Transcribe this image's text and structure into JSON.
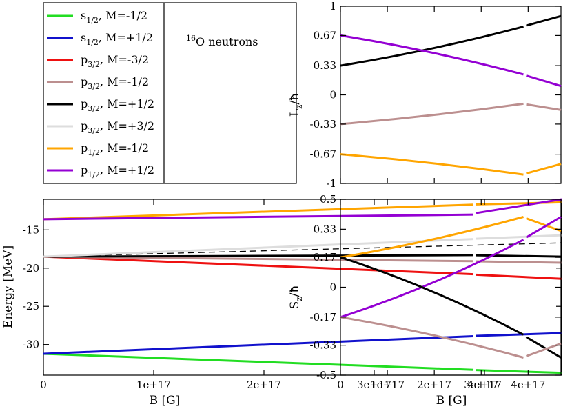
{
  "legend": {
    "title_sup": "16",
    "title_text": "O neutrons",
    "entries": [
      {
        "sym": "s",
        "sub": "1/2",
        "m": ", M=-1/2",
        "color": "#22dd22"
      },
      {
        "sym": "s",
        "sub": "1/2",
        "m": ", M=+1/2",
        "color": "#1111cc"
      },
      {
        "sym": "p",
        "sub": "3/2",
        "m": ", M=-3/2",
        "color": "#ee1111"
      },
      {
        "sym": "p",
        "sub": "3/2",
        "m": ", M=-1/2",
        "color": "#bc8f8f"
      },
      {
        "sym": "p",
        "sub": "3/2",
        "m": ", M=+1/2",
        "color": "#000000"
      },
      {
        "sym": "p",
        "sub": "3/2",
        "m": ", M=+3/2",
        "color": "#dddddd"
      },
      {
        "sym": "p",
        "sub": "1/2",
        "m": ", M=-1/2",
        "color": "#ffa500"
      },
      {
        "sym": "p",
        "sub": "1/2",
        "m": ", M=+1/2",
        "color": "#9400d3"
      }
    ]
  },
  "chart_data": [
    {
      "id": "energy",
      "type": "line",
      "xlabel": "B [G]",
      "ylabel": "Energy [MeV]",
      "xlim": [
        0,
        4.7e+17
      ],
      "ylim": [
        -34,
        -11
      ],
      "xticks": [
        "0",
        "1e+17",
        "2e+17",
        "3e+17",
        "4e+17"
      ],
      "yticks": [
        "-15",
        "-20",
        "-25",
        "-30"
      ],
      "series": [
        {
          "name": "s1/2 M=-1/2",
          "color": "#22dd22",
          "x": [
            0,
            3.9e+17,
            4.7e+17
          ],
          "y": [
            -31.2,
            -33.3,
            -33.7
          ]
        },
        {
          "name": "s1/2 M=+1/2",
          "color": "#1111cc",
          "x": [
            0,
            3.9e+17,
            4.7e+17
          ],
          "y": [
            -31.2,
            -28.9,
            -28.5
          ]
        },
        {
          "name": "p3/2 M=-3/2",
          "color": "#ee1111",
          "x": [
            0,
            3.9e+17,
            4.7e+17
          ],
          "y": [
            -18.5,
            -20.8,
            -21.4
          ]
        },
        {
          "name": "p3/2 M=-1/2",
          "color": "#bc8f8f",
          "x": [
            0,
            3.9e+17,
            4.7e+17
          ],
          "y": [
            -18.5,
            -19.1,
            -19.3
          ]
        },
        {
          "name": "p3/2 M=+1/2",
          "color": "#000000",
          "x": [
            0,
            3.9e+17,
            4.7e+17
          ],
          "y": [
            -18.5,
            -18.3,
            -18.5
          ]
        },
        {
          "name": "p3/2 M=+3/2",
          "color": "#dddddd",
          "x": [
            0,
            3.9e+17,
            4.7e+17
          ],
          "y": [
            -18.5,
            -16.2,
            -15.7
          ]
        },
        {
          "name": "p1/2 M=-1/2",
          "color": "#ffa500",
          "x": [
            0,
            3.9e+17,
            4.7e+17
          ],
          "y": [
            -13.6,
            -11.7,
            -11.4
          ]
        },
        {
          "name": "p1/2 M=+1/2",
          "color": "#9400d3",
          "x": [
            0,
            3.9e+17,
            4.7e+17
          ],
          "y": [
            -13.6,
            -13.0,
            -11.0
          ]
        }
      ]
    },
    {
      "id": "lz",
      "type": "line",
      "xlabel": "",
      "ylabel": "Lz/ħ",
      "xlim": [
        0,
        4.7e+17
      ],
      "ylim": [
        -1,
        1
      ],
      "yticks": [
        "1",
        "0.67",
        "0.33",
        "0",
        "-0.33",
        "-0.67",
        "-1"
      ],
      "series": [
        {
          "name": "p3/2 M=+1/2",
          "color": "#000000",
          "x": [
            0,
            3.9e+17,
            4.7e+17
          ],
          "y": [
            0.33,
            0.77,
            0.89
          ]
        },
        {
          "name": "p1/2 M=+1/2",
          "color": "#9400d3",
          "x": [
            0,
            3.9e+17,
            4.7e+17
          ],
          "y": [
            0.67,
            0.23,
            0.1
          ]
        },
        {
          "name": "p3/2 M=-1/2",
          "color": "#bc8f8f",
          "x": [
            0,
            3.9e+17,
            4.7e+17
          ],
          "y": [
            -0.33,
            -0.1,
            -0.17
          ]
        },
        {
          "name": "p1/2 M=-1/2",
          "color": "#ffa500",
          "x": [
            0,
            3.9e+17,
            4.7e+17
          ],
          "y": [
            -0.67,
            -0.9,
            -0.78
          ]
        }
      ]
    },
    {
      "id": "sz",
      "type": "line",
      "xlabel": "B [G]",
      "ylabel": "Sz/ħ",
      "xlim": [
        0,
        4.7e+17
      ],
      "ylim": [
        -0.5,
        0.5
      ],
      "xticks": [
        "0",
        "1e+17",
        "2e+17",
        "3e+17",
        "4e+17"
      ],
      "yticks": [
        "0.5",
        "0.33",
        "0.17",
        "0",
        "-0.17",
        "-0.33",
        "-0.5"
      ],
      "series": [
        {
          "name": "p1/2 M=-1/2",
          "color": "#ffa500",
          "x": [
            0,
            3.9e+17,
            4.7e+17
          ],
          "y": [
            0.17,
            0.4,
            0.32
          ]
        },
        {
          "name": "p1/2 M=+1/2",
          "color": "#9400d3",
          "x": [
            0,
            3.9e+17,
            4.7e+17
          ],
          "y": [
            -0.17,
            0.27,
            0.4
          ]
        },
        {
          "name": "p3/2 M=+1/2",
          "color": "#000000",
          "x": [
            0,
            3.9e+17,
            4.7e+17
          ],
          "y": [
            0.17,
            -0.27,
            -0.4
          ]
        },
        {
          "name": "p3/2 M=-1/2",
          "color": "#bc8f8f",
          "x": [
            0,
            3.9e+17,
            4.7e+17
          ],
          "y": [
            -0.17,
            -0.4,
            -0.32
          ]
        }
      ]
    }
  ]
}
